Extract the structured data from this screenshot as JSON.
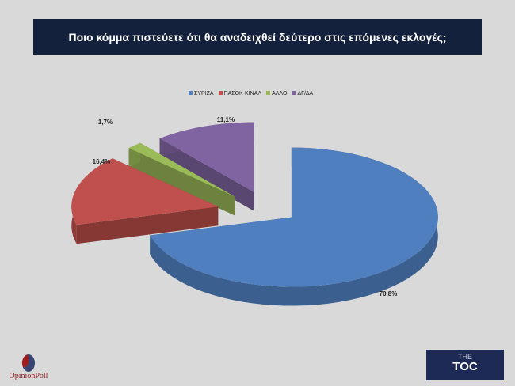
{
  "title": "Ποιο κόμμα πιστεύετε ότι θα αναδειχθεί δεύτερο στις επόμενες εκλογές;",
  "chart_data": {
    "type": "pie",
    "style": "3d-exploded",
    "categories": [
      "ΣΥΡΙΖΑ",
      "ΠΑΣΟΚ-ΚΙΝΑΛ",
      "ΑΛΛΟ",
      "ΔΓ/ΔΑ"
    ],
    "values": [
      70.8,
      16.4,
      1.7,
      11.1
    ],
    "labels": [
      "70,8%",
      "16,4%",
      "1,7%",
      "11,1%"
    ],
    "colors": [
      "#4f7fbf",
      "#c0504d",
      "#9bbb59",
      "#8064a2"
    ],
    "legend_position": "top"
  },
  "logos": {
    "left": "OpinionPoll",
    "right_top": "THE",
    "right_main": "TOC"
  }
}
